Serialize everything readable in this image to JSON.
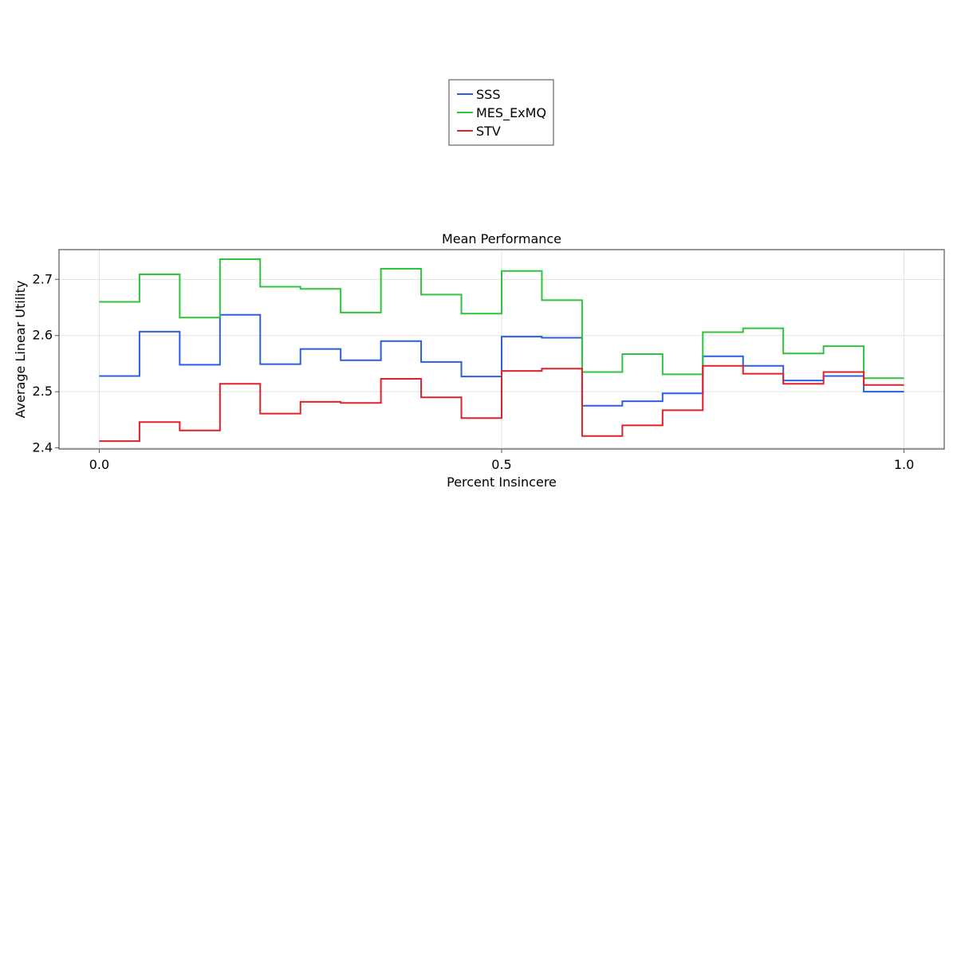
{
  "chart_data": {
    "type": "line",
    "step": "post",
    "title": "Mean Performance",
    "xlabel": "Percent Insincere",
    "ylabel": "Average Linear Utility",
    "xlim": [
      -0.05,
      1.05
    ],
    "ylim": [
      2.398,
      2.753
    ],
    "xticks": [
      0.0,
      0.5,
      1.0
    ],
    "xtick_labels": [
      "0.0",
      "0.5",
      "1.0"
    ],
    "yticks": [
      2.4,
      2.5,
      2.6,
      2.7
    ],
    "ytick_labels": [
      "2.4",
      "2.5",
      "2.6",
      "2.7"
    ],
    "grid": true,
    "legend_position": "top-center, outside plot",
    "x": [
      0.0,
      0.05,
      0.1,
      0.15,
      0.2,
      0.25,
      0.3,
      0.35,
      0.4,
      0.45,
      0.5,
      0.55,
      0.6,
      0.65,
      0.7,
      0.75,
      0.8,
      0.85,
      0.9,
      0.95,
      1.0
    ],
    "series": [
      {
        "name": "SSS",
        "color": "#2a5fe0",
        "values": [
          2.528,
          2.607,
          2.548,
          2.637,
          2.549,
          2.576,
          2.556,
          2.59,
          2.553,
          2.527,
          2.598,
          2.596,
          2.475,
          2.483,
          2.497,
          2.563,
          2.546,
          2.52,
          2.528,
          2.5,
          2.5
        ]
      },
      {
        "name": "MES_ExMQ",
        "color": "#2ec43c",
        "values": [
          2.66,
          2.709,
          2.632,
          2.736,
          2.687,
          2.683,
          2.641,
          2.719,
          2.673,
          2.639,
          2.715,
          2.663,
          2.535,
          2.567,
          2.531,
          2.606,
          2.613,
          2.568,
          2.581,
          2.524,
          2.524
        ]
      },
      {
        "name": "STV",
        "color": "#e0202c",
        "values": [
          2.412,
          2.446,
          2.431,
          2.514,
          2.461,
          2.482,
          2.48,
          2.523,
          2.49,
          2.453,
          2.537,
          2.541,
          2.421,
          2.44,
          2.467,
          2.546,
          2.532,
          2.514,
          2.535,
          2.512,
          2.512
        ]
      }
    ]
  },
  "colors": {
    "grid": "#e3e3e3",
    "frame": "#555555",
    "legend_border": "#666666"
  }
}
